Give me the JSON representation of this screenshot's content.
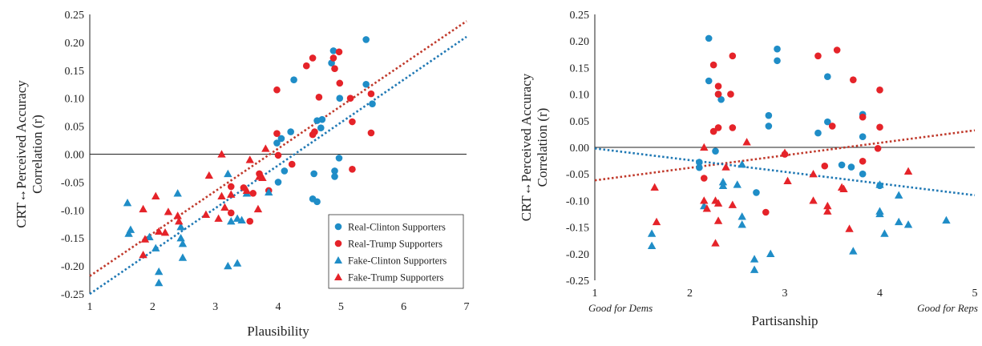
{
  "chart_data": [
    {
      "type": "scatter",
      "xlabel": "Plausibility",
      "ylabel": [
        "CRT↔Perceived Accuracy",
        "Correlation (r)"
      ],
      "xlim": [
        1,
        7
      ],
      "ylim": [
        -0.25,
        0.25
      ],
      "x_ticks": [
        "1",
        "2",
        "3",
        "4",
        "5",
        "6",
        "7"
      ],
      "y_ticks": [
        "0.25",
        "0.20",
        "0.15",
        "0.10",
        "0.05",
        "0.00",
        "-0.05",
        "-0.10",
        "-0.15",
        "-0.20",
        "-0.25"
      ],
      "grid": false,
      "zero_line": true,
      "legend_position": "bottom-right",
      "legend": [
        {
          "name": "Real-Clinton Supporters",
          "marker": "circle",
          "color": "#1f8dc7"
        },
        {
          "name": "Real-Trump Supporters",
          "marker": "circle",
          "color": "#e52329"
        },
        {
          "name": "Fake-Clinton Supporters",
          "marker": "triangle",
          "color": "#1f8dc7"
        },
        {
          "name": "Fake-Trump Supporters",
          "marker": "triangle",
          "color": "#e52329"
        }
      ],
      "series": [
        {
          "name": "Real-Clinton Supporters",
          "marker": "circle",
          "color": "#1f8dc7",
          "points": [
            [
              4.25,
              0.133
            ],
            [
              4.88,
              0.185
            ],
            [
              4.85,
              0.163
            ],
            [
              5.4,
              0.205
            ],
            [
              5.4,
              0.125
            ],
            [
              5.5,
              0.09
            ],
            [
              4.98,
              0.1
            ],
            [
              4.7,
              0.062
            ],
            [
              4.62,
              0.06
            ],
            [
              4.68,
              0.047
            ],
            [
              4.2,
              0.04
            ],
            [
              4.05,
              0.028
            ],
            [
              3.98,
              0.02
            ],
            [
              4.1,
              -0.03
            ],
            [
              4.0,
              -0.05
            ],
            [
              4.57,
              -0.035
            ],
            [
              4.9,
              -0.03
            ],
            [
              4.9,
              -0.04
            ],
            [
              4.97,
              -0.007
            ],
            [
              4.55,
              -0.08
            ],
            [
              4.62,
              -0.085
            ]
          ]
        },
        {
          "name": "Real-Trump Supporters",
          "marker": "circle",
          "color": "#e52329",
          "points": [
            [
              4.55,
              0.172
            ],
            [
              4.45,
              0.158
            ],
            [
              4.88,
              0.172
            ],
            [
              4.97,
              0.183
            ],
            [
              4.9,
              0.153
            ],
            [
              3.98,
              0.115
            ],
            [
              4.98,
              0.127
            ],
            [
              5.15,
              0.1
            ],
            [
              4.65,
              0.102
            ],
            [
              5.48,
              0.108
            ],
            [
              4.58,
              0.04
            ],
            [
              4.55,
              0.035
            ],
            [
              3.98,
              0.037
            ],
            [
              5.18,
              0.058
            ],
            [
              5.48,
              0.038
            ],
            [
              4.0,
              -0.002
            ],
            [
              4.22,
              -0.018
            ],
            [
              5.18,
              -0.027
            ],
            [
              3.7,
              -0.035
            ],
            [
              3.45,
              -0.06
            ],
            [
              3.25,
              -0.058
            ],
            [
              3.25,
              -0.105
            ],
            [
              3.55,
              -0.12
            ],
            [
              3.6,
              -0.07
            ],
            [
              3.85,
              -0.065
            ]
          ]
        },
        {
          "name": "Fake-Clinton Supporters",
          "marker": "triangle",
          "color": "#1f8dc7",
          "points": [
            [
              1.6,
              -0.087
            ],
            [
              1.65,
              -0.135
            ],
            [
              1.62,
              -0.142
            ],
            [
              1.95,
              -0.148
            ],
            [
              2.05,
              -0.168
            ],
            [
              2.1,
              -0.21
            ],
            [
              2.1,
              -0.23
            ],
            [
              2.4,
              -0.07
            ],
            [
              2.45,
              -0.13
            ],
            [
              2.45,
              -0.15
            ],
            [
              2.48,
              -0.16
            ],
            [
              2.48,
              -0.185
            ],
            [
              3.2,
              -0.035
            ],
            [
              3.25,
              -0.12
            ],
            [
              3.2,
              -0.2
            ],
            [
              3.35,
              -0.195
            ],
            [
              3.35,
              -0.115
            ],
            [
              3.42,
              -0.118
            ],
            [
              3.5,
              -0.07
            ],
            [
              3.85,
              -0.068
            ]
          ]
        },
        {
          "name": "Fake-Trump Supporters",
          "marker": "triangle",
          "color": "#e52329",
          "points": [
            [
              1.85,
              -0.098
            ],
            [
              2.05,
              -0.075
            ],
            [
              2.25,
              -0.103
            ],
            [
              2.1,
              -0.138
            ],
            [
              2.2,
              -0.14
            ],
            [
              2.4,
              -0.11
            ],
            [
              2.42,
              -0.12
            ],
            [
              1.88,
              -0.152
            ],
            [
              1.85,
              -0.18
            ],
            [
              2.9,
              -0.038
            ],
            [
              3.1,
              0.0
            ],
            [
              3.1,
              -0.075
            ],
            [
              2.85,
              -0.108
            ],
            [
              3.05,
              -0.115
            ],
            [
              3.15,
              -0.095
            ],
            [
              3.25,
              -0.072
            ],
            [
              3.5,
              -0.065
            ],
            [
              3.55,
              -0.01
            ],
            [
              3.7,
              -0.04
            ],
            [
              3.68,
              -0.098
            ],
            [
              3.8,
              0.01
            ],
            [
              3.75,
              -0.042
            ]
          ]
        }
      ],
      "trendlines": [
        {
          "series": "Real/Fake Trump",
          "color": "#c0392b",
          "style": "dotted",
          "x": [
            1,
            7
          ],
          "y": [
            -0.218,
            0.238
          ]
        },
        {
          "series": "Real/Fake Clinton",
          "color": "#1f78b4",
          "style": "dotted",
          "x": [
            1,
            7
          ],
          "y": [
            -0.25,
            0.21
          ]
        }
      ]
    },
    {
      "type": "scatter",
      "xlabel": "Partisanship",
      "ylabel": [
        "CRT↔Perceived Accuracy",
        "Correlation (r)"
      ],
      "xlim": [
        1,
        5
      ],
      "ylim": [
        -0.25,
        0.25
      ],
      "x_ticks": [
        "1",
        "2",
        "3",
        "4",
        "5"
      ],
      "y_ticks": [
        "0.25",
        "0.20",
        "0.15",
        "0.10",
        "0.05",
        "0.00",
        "-0.05",
        "-0.10",
        "-0.15",
        "-0.20",
        "-0.25"
      ],
      "x_extreme_labels": {
        "left": "Good for Dems",
        "right": "Good for Reps"
      },
      "grid": false,
      "zero_line": true,
      "series": [
        {
          "name": "Real-Clinton Supporters",
          "marker": "circle",
          "color": "#1f8dc7",
          "points": [
            [
              2.2,
              0.205
            ],
            [
              2.2,
              0.125
            ],
            [
              2.3,
              0.1
            ],
            [
              2.33,
              0.09
            ],
            [
              2.92,
              0.185
            ],
            [
              2.92,
              0.163
            ],
            [
              3.45,
              0.133
            ],
            [
              2.83,
              0.06
            ],
            [
              2.83,
              0.04
            ],
            [
              3.35,
              0.027
            ],
            [
              3.45,
              0.048
            ],
            [
              3.82,
              0.062
            ],
            [
              3.82,
              0.02
            ],
            [
              2.1,
              -0.028
            ],
            [
              2.1,
              -0.038
            ],
            [
              2.27,
              -0.007
            ],
            [
              3.6,
              -0.033
            ],
            [
              3.7,
              -0.037
            ],
            [
              3.82,
              -0.05
            ],
            [
              2.7,
              -0.085
            ],
            [
              4.0,
              -0.072
            ]
          ]
        },
        {
          "name": "Real-Trump Supporters",
          "marker": "circle",
          "color": "#e52329",
          "points": [
            [
              2.25,
              0.155
            ],
            [
              2.45,
              0.172
            ],
            [
              3.35,
              0.172
            ],
            [
              3.55,
              0.183
            ],
            [
              3.72,
              0.127
            ],
            [
              4.0,
              0.108
            ],
            [
              2.3,
              0.115
            ],
            [
              2.3,
              0.1
            ],
            [
              2.43,
              0.1
            ],
            [
              3.5,
              0.04
            ],
            [
              4.0,
              0.038
            ],
            [
              2.25,
              0.03
            ],
            [
              2.3,
              0.037
            ],
            [
              2.45,
              0.037
            ],
            [
              3.82,
              0.057
            ],
            [
              3.0,
              -0.013
            ],
            [
              3.98,
              -0.002
            ],
            [
              2.15,
              -0.058
            ],
            [
              3.42,
              -0.035
            ],
            [
              3.82,
              -0.026
            ],
            [
              2.8,
              -0.122
            ]
          ]
        },
        {
          "name": "Fake-Clinton Supporters",
          "marker": "triangle",
          "color": "#1f8dc7",
          "points": [
            [
              1.6,
              -0.162
            ],
            [
              1.6,
              -0.185
            ],
            [
              2.15,
              -0.11
            ],
            [
              2.35,
              -0.065
            ],
            [
              2.35,
              -0.072
            ],
            [
              2.55,
              -0.032
            ],
            [
              2.5,
              -0.07
            ],
            [
              2.55,
              -0.13
            ],
            [
              2.55,
              -0.145
            ],
            [
              2.68,
              -0.21
            ],
            [
              2.68,
              -0.23
            ],
            [
              2.85,
              -0.2
            ],
            [
              3.72,
              -0.195
            ],
            [
              4.0,
              -0.07
            ],
            [
              4.0,
              -0.12
            ],
            [
              4.0,
              -0.125
            ],
            [
              4.05,
              -0.162
            ],
            [
              4.2,
              -0.09
            ],
            [
              4.2,
              -0.14
            ],
            [
              4.3,
              -0.145
            ],
            [
              4.7,
              -0.137
            ]
          ]
        },
        {
          "name": "Fake-Trump Supporters",
          "marker": "triangle",
          "color": "#e52329",
          "points": [
            [
              1.63,
              -0.075
            ],
            [
              1.65,
              -0.14
            ],
            [
              2.15,
              0.0
            ],
            [
              2.15,
              -0.1
            ],
            [
              2.18,
              -0.115
            ],
            [
              2.27,
              -0.1
            ],
            [
              2.3,
              -0.105
            ],
            [
              2.3,
              -0.138
            ],
            [
              2.27,
              -0.18
            ],
            [
              2.38,
              -0.037
            ],
            [
              2.45,
              -0.108
            ],
            [
              2.6,
              0.01
            ],
            [
              3.0,
              -0.01
            ],
            [
              3.03,
              -0.063
            ],
            [
              3.3,
              -0.05
            ],
            [
              3.3,
              -0.1
            ],
            [
              3.45,
              -0.11
            ],
            [
              3.45,
              -0.12
            ],
            [
              3.6,
              -0.075
            ],
            [
              3.62,
              -0.078
            ],
            [
              3.68,
              -0.153
            ],
            [
              4.3,
              -0.045
            ]
          ]
        }
      ],
      "trendlines": [
        {
          "series": "Trump",
          "color": "#c0392b",
          "style": "dotted",
          "x": [
            1,
            5
          ],
          "y": [
            -0.062,
            0.032
          ]
        },
        {
          "series": "Clinton",
          "color": "#1f78b4",
          "style": "dotted",
          "x": [
            1,
            5
          ],
          "y": [
            -0.002,
            -0.09
          ]
        }
      ]
    }
  ]
}
